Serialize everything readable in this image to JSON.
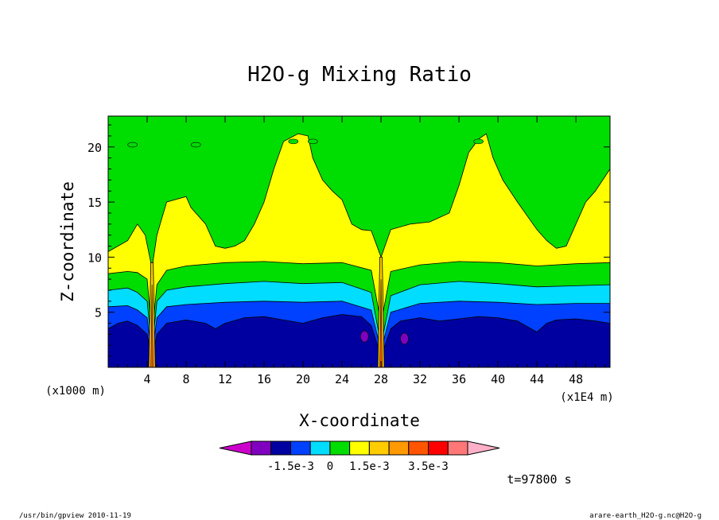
{
  "chart_data": {
    "type": "heatmap",
    "title": "H2O-g Mixing Ratio",
    "xlabel": "X-coordinate",
    "ylabel": "Z-coordinate",
    "x_unit": "(x1E4 m)",
    "y_unit": "(x1000 m)",
    "xlim": [
      0,
      51.5
    ],
    "ylim": [
      0,
      22.8
    ],
    "x_ticks": [
      4,
      8,
      12,
      16,
      20,
      24,
      28,
      32,
      36,
      40,
      44,
      48
    ],
    "y_ticks": [
      5,
      10,
      15,
      20
    ],
    "colorbar": {
      "colors": [
        "#cc00cc",
        "#8000c0",
        "#0000a0",
        "#0040ff",
        "#00ddff",
        "#00dd00",
        "#ffff00",
        "#ffcc00",
        "#ff9900",
        "#ff5500",
        "#ff0000",
        "#ff7777",
        "#ffb0c8"
      ],
      "labels": [
        "-1.5e-3",
        "0",
        "1.5e-3",
        "3.5e-3"
      ]
    },
    "bands": [
      {
        "name": "yellow",
        "color": "#ffff00",
        "profile": [
          [
            0,
            10.5
          ],
          [
            2,
            11.5
          ],
          [
            3,
            13
          ],
          [
            3.8,
            12
          ],
          [
            4.5,
            9
          ],
          [
            5,
            12
          ],
          [
            6,
            15
          ],
          [
            8,
            15.5
          ],
          [
            8.5,
            14.5
          ],
          [
            10,
            13
          ],
          [
            11,
            11
          ],
          [
            12,
            10.8
          ],
          [
            13,
            11
          ],
          [
            14,
            11.5
          ],
          [
            15,
            13
          ],
          [
            16,
            15
          ],
          [
            17,
            18
          ],
          [
            18,
            20.5
          ],
          [
            19.5,
            21.2
          ],
          [
            20.5,
            21
          ],
          [
            21,
            19
          ],
          [
            22,
            17
          ],
          [
            23,
            16
          ],
          [
            24,
            15.2
          ],
          [
            25,
            13
          ],
          [
            26,
            12.5
          ],
          [
            27,
            12.4
          ],
          [
            28,
            10
          ],
          [
            29,
            12.5
          ],
          [
            31,
            13
          ],
          [
            33,
            13.2
          ],
          [
            35,
            14
          ],
          [
            36,
            16.5
          ],
          [
            37,
            19.5
          ],
          [
            38,
            20.7
          ],
          [
            38.8,
            21.2
          ],
          [
            39.5,
            19
          ],
          [
            40.5,
            17
          ],
          [
            42,
            15
          ],
          [
            44,
            12.5
          ],
          [
            45,
            11.5
          ],
          [
            46,
            10.8
          ],
          [
            47,
            11
          ],
          [
            48,
            13
          ],
          [
            49,
            15
          ],
          [
            50,
            16
          ],
          [
            51.5,
            18
          ]
        ]
      },
      {
        "name": "green",
        "color": "#00dd00",
        "profile": [
          [
            0,
            8.5
          ],
          [
            2,
            8.7
          ],
          [
            3,
            8.6
          ],
          [
            4,
            8
          ],
          [
            4.5,
            3
          ],
          [
            5,
            7.5
          ],
          [
            6,
            8.8
          ],
          [
            8,
            9.2
          ],
          [
            12,
            9.5
          ],
          [
            16,
            9.6
          ],
          [
            20,
            9.4
          ],
          [
            24,
            9.5
          ],
          [
            27,
            8.8
          ],
          [
            28,
            4
          ],
          [
            29,
            8.7
          ],
          [
            32,
            9.3
          ],
          [
            36,
            9.6
          ],
          [
            40,
            9.5
          ],
          [
            44,
            9.2
          ],
          [
            48,
            9.4
          ],
          [
            51.5,
            9.5
          ]
        ]
      },
      {
        "name": "cyan",
        "color": "#00ddff",
        "profile": [
          [
            0,
            7
          ],
          [
            2,
            7.2
          ],
          [
            3,
            6.8
          ],
          [
            4,
            6
          ],
          [
            4.5,
            1.5
          ],
          [
            5,
            6
          ],
          [
            6,
            7
          ],
          [
            8,
            7.3
          ],
          [
            12,
            7.6
          ],
          [
            16,
            7.8
          ],
          [
            20,
            7.6
          ],
          [
            24,
            7.7
          ],
          [
            27,
            6.8
          ],
          [
            28,
            2
          ],
          [
            29,
            6.5
          ],
          [
            32,
            7.5
          ],
          [
            36,
            7.8
          ],
          [
            40,
            7.6
          ],
          [
            44,
            7.3
          ],
          [
            48,
            7.4
          ],
          [
            51.5,
            7.5
          ]
        ]
      },
      {
        "name": "blue",
        "color": "#0040ff",
        "profile": [
          [
            0,
            5.5
          ],
          [
            2,
            5.6
          ],
          [
            3,
            5.2
          ],
          [
            4,
            4.5
          ],
          [
            4.5,
            1
          ],
          [
            5,
            4.5
          ],
          [
            6,
            5.5
          ],
          [
            8,
            5.7
          ],
          [
            12,
            5.9
          ],
          [
            16,
            6
          ],
          [
            20,
            5.9
          ],
          [
            24,
            6
          ],
          [
            27,
            5.2
          ],
          [
            28,
            1.5
          ],
          [
            29,
            5
          ],
          [
            32,
            5.8
          ],
          [
            36,
            6
          ],
          [
            40,
            5.9
          ],
          [
            44,
            5.7
          ],
          [
            48,
            5.8
          ],
          [
            51.5,
            5.8
          ]
        ]
      },
      {
        "name": "darkblue",
        "color": "#0000a0",
        "profile": [
          [
            0,
            3.5
          ],
          [
            1,
            4
          ],
          [
            2,
            4.2
          ],
          [
            3,
            3.8
          ],
          [
            4,
            3
          ],
          [
            4.5,
            0.8
          ],
          [
            5,
            3
          ],
          [
            6,
            4
          ],
          [
            8,
            4.3
          ],
          [
            10,
            4
          ],
          [
            11,
            3.5
          ],
          [
            12,
            4
          ],
          [
            14,
            4.5
          ],
          [
            16,
            4.6
          ],
          [
            18,
            4.3
          ],
          [
            20,
            4
          ],
          [
            22,
            4.5
          ],
          [
            24,
            4.8
          ],
          [
            26,
            4.6
          ],
          [
            27,
            3.8
          ],
          [
            28,
            1
          ],
          [
            29,
            3.5
          ],
          [
            30,
            4.2
          ],
          [
            32,
            4.5
          ],
          [
            34,
            4.2
          ],
          [
            36,
            4.4
          ],
          [
            38,
            4.6
          ],
          [
            40,
            4.5
          ],
          [
            42,
            4.2
          ],
          [
            44,
            3.2
          ],
          [
            45,
            4
          ],
          [
            46,
            4.3
          ],
          [
            48,
            4.4
          ],
          [
            50,
            4.2
          ],
          [
            51.5,
            4
          ]
        ]
      }
    ]
  },
  "footer": {
    "time": "t=97800 s",
    "left": "/usr/bin/gpview  2010-11-19",
    "right": "arare-earth_H2O-g.nc@H2O-g"
  }
}
